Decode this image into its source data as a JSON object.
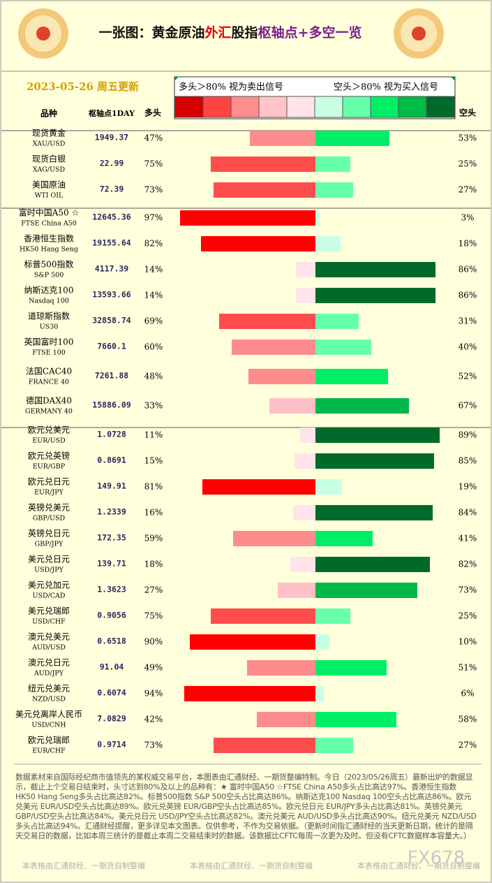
{
  "header": {
    "title_parts": [
      {
        "text": "一张图：黄金原油",
        "color": "#111111"
      },
      {
        "text": "外汇",
        "color": "#e00000"
      },
      {
        "text": "股指",
        "color": "#111111"
      },
      {
        "text": "枢轴点+多空一览",
        "color": "#7a1f8c"
      }
    ],
    "date": "2023-05-26 周五更新"
  },
  "legend": {
    "long_text": "多头＞80% 视为卖出信号",
    "short_text": "空头＞80% 视为买入信号",
    "colors": [
      "#d40000",
      "#ff4444",
      "#ff8e8e",
      "#ffc4c8",
      "#ffe4e8",
      "#c8ffe0",
      "#66ffaa",
      "#00ee66",
      "#00bb44",
      "#006a2a"
    ],
    "long_colors": [
      "#ff0000",
      "#ff4d4d",
      "#ff8c8c",
      "#ffc0c8",
      "#ffe4ea"
    ],
    "short_colors": [
      "#006a2a",
      "#00b84a",
      "#00ee66",
      "#66ffaa",
      "#c8ffe4"
    ]
  },
  "columns": {
    "name": "品种",
    "pivot": "枢轴点1DAY",
    "long": "多头",
    "short": "空头"
  },
  "groups": [
    [
      {
        "name": "现货黄金",
        "code": "XAU/USD",
        "pivot": "1949.37",
        "long": {
          "value": 47,
          "label": "47%"
        },
        "short": {
          "value": 53,
          "label": "53%"
        }
      },
      {
        "name": "现货白银",
        "code": "XAG/USD",
        "pivot": "22.99",
        "long": {
          "value": 75,
          "label": "75%"
        },
        "short": {
          "value": 25,
          "label": "25%"
        }
      },
      {
        "name": "美国原油",
        "code": "WTI OIL",
        "pivot": "72.39",
        "long": {
          "value": 73,
          "label": "73%"
        },
        "short": {
          "value": 27,
          "label": "27%"
        }
      }
    ],
    [
      {
        "name": "富时中国A50 ☆",
        "code": "FTSE China A50",
        "pivot": "12645.36",
        "long": {
          "value": 97,
          "label": "97%"
        },
        "short": {
          "value": 3,
          "label": "3%"
        }
      },
      {
        "name": "香港恒生指数",
        "code": "HK50 Hang Seng",
        "pivot": "19155.64",
        "long": {
          "value": 82,
          "label": "82%"
        },
        "short": {
          "value": 18,
          "label": "18%"
        }
      },
      {
        "name": "标普500指数",
        "code": "S&P 500",
        "pivot": "4117.39",
        "long": {
          "value": 14,
          "label": "14%"
        },
        "short": {
          "value": 86,
          "label": "86%"
        }
      },
      {
        "name": "纳斯达克100",
        "code": "Nasdaq 100",
        "pivot": "13593.66",
        "long": {
          "value": 14,
          "label": "14%"
        },
        "short": {
          "value": 86,
          "label": "86%"
        }
      },
      {
        "name": "道琼斯指数",
        "code": "US30",
        "pivot": "32858.74",
        "long": {
          "value": 69,
          "label": "69%"
        },
        "short": {
          "value": 31,
          "label": "31%"
        }
      },
      {
        "name": "英国富时100",
        "code": "FTSE 100",
        "pivot": "7660.1",
        "long": {
          "value": 60,
          "label": "60%"
        },
        "short": {
          "value": 40,
          "label": "40%"
        }
      },
      {
        "name": "法国CAC40",
        "code": "FRANCE 40",
        "pivot": "7261.88",
        "long": {
          "value": 48,
          "label": "48%"
        },
        "short": {
          "value": 52,
          "label": "52%"
        }
      },
      {
        "name": "德国DAX40",
        "code": "GERMANY 40",
        "pivot": "15886.09",
        "long": {
          "value": 33,
          "label": "33%"
        },
        "short": {
          "value": 67,
          "label": "67%"
        }
      }
    ],
    [
      {
        "name": "欧元兑美元",
        "code": "EUR/USD",
        "pivot": "1.0728",
        "long": {
          "value": 11,
          "label": "11%"
        },
        "short": {
          "value": 89,
          "label": "89%"
        }
      },
      {
        "name": "欧元兑英镑",
        "code": "EUR/GBP",
        "pivot": "0.8691",
        "long": {
          "value": 15,
          "label": "15%"
        },
        "short": {
          "value": 85,
          "label": "85%"
        }
      },
      {
        "name": "欧元兑日元",
        "code": "EUR/JPY",
        "pivot": "149.91",
        "long": {
          "value": 81,
          "label": "81%"
        },
        "short": {
          "value": 19,
          "label": "19%"
        }
      },
      {
        "name": "英镑兑美元",
        "code": "GBP/USD",
        "pivot": "1.2339",
        "long": {
          "value": 16,
          "label": "16%"
        },
        "short": {
          "value": 84,
          "label": "84%"
        }
      },
      {
        "name": "英镑兑日元",
        "code": "GBP/JPY",
        "pivot": "172.35",
        "long": {
          "value": 59,
          "label": "59%"
        },
        "short": {
          "value": 41,
          "label": "41%"
        }
      },
      {
        "name": "美元兑日元",
        "code": "USD/JPY",
        "pivot": "139.71",
        "long": {
          "value": 18,
          "label": "18%"
        },
        "short": {
          "value": 82,
          "label": "82%"
        }
      },
      {
        "name": "美元兑加元",
        "code": "USD/CAD",
        "pivot": "1.3623",
        "long": {
          "value": 27,
          "label": "27%"
        },
        "short": {
          "value": 73,
          "label": "73%"
        }
      },
      {
        "name": "美元兑瑞郎",
        "code": "USD/CHF",
        "pivot": "0.9056",
        "long": {
          "value": 75,
          "label": "75%"
        },
        "short": {
          "value": 25,
          "label": "25%"
        }
      },
      {
        "name": "澳元兑美元",
        "code": "AUD/USD",
        "pivot": "0.6518",
        "long": {
          "value": 90,
          "label": "90%"
        },
        "short": {
          "value": 10,
          "label": "10%"
        }
      },
      {
        "name": "澳元兑日元",
        "code": "AUD/JPY",
        "pivot": "91.04",
        "long": {
          "value": 49,
          "label": "49%"
        },
        "short": {
          "value": 51,
          "label": "51%"
        }
      },
      {
        "name": "纽元兑美元",
        "code": "NZD/USD",
        "pivot": "0.6074",
        "long": {
          "value": 94,
          "label": "94%"
        },
        "short": {
          "value": 6,
          "label": "6%"
        }
      },
      {
        "name": "美元兑离岸人民币",
        "code": "USD/CNH",
        "pivot": "7.0829",
        "long": {
          "value": 42,
          "label": "42%"
        },
        "short": {
          "value": 58,
          "label": "58%"
        }
      },
      {
        "name": "欧元兑瑞郎",
        "code": "EUR/CHF",
        "pivot": "0.9714",
        "long": {
          "value": 73,
          "label": "73%"
        },
        "short": {
          "value": 27,
          "label": "27%"
        }
      }
    ]
  ],
  "footer": {
    "text": "数据素材来自国际经纪商市值领先的某权威交易平台，本图表由汇通财经、一期货整编特制。今日（2023/05/26周五）最新出炉的数据显示，截止上个交易日结束时，头寸达到80%及以上的品种有：★ 富时中国A50 ☆FTSE China A50多头占比高达97%。香港恒生指数 HK50 Hang Seng多头占比高达82%。标普500指数 S&P 500空头占比高达86%。纳斯达克100 Nasdaq 100空头占比高达86%。欧元兑美元 EUR/USD空头占比高达89%。欧元兑英镑 EUR/GBP空头占比高达85%。欧元兑日元 EUR/JPY多头占比高达81%。英镑兑美元 GBP/USD空头占比高达84%。美元兑日元 USD/JPY空头占比高达82%。澳元兑美元 AUD/USD多头占比高达90%。纽元兑美元 NZD/USD多头占比高达94%。汇通财经提醒，更多详见本文图表。仅供参考，不作为交易依据。（更新时间指汇通财经的当天更新日期，统计的是隔天交易日的数据，比如本周三统计的是截止本周二交易结束时的数据。该数据比CFTC每周一次更为及时。但没有CFTC数据样本容量大。）",
    "credits": [
      "本表格由汇通财经、一期货自制整编",
      "本表格由汇通财经、一期货自制整编",
      "本表格由汇通财经、一期货自制整编"
    ],
    "watermark": "FX678"
  }
}
